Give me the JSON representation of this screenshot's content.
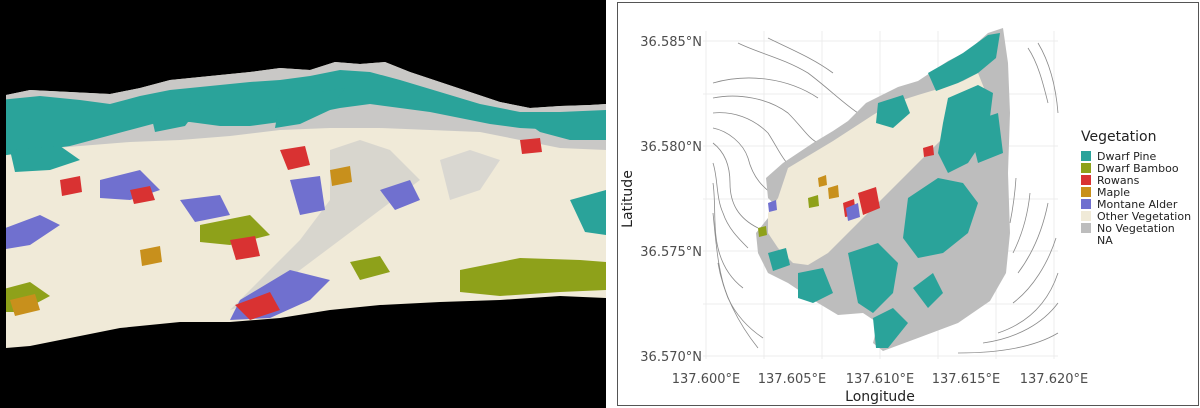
{
  "map": {
    "x_axis_title": "Longitude",
    "y_axis_title": "Latitude",
    "x_ticks": [
      "137.600°E",
      "137.605°E",
      "137.610°E",
      "137.615°E",
      "137.620°E"
    ],
    "y_ticks": [
      "36.585°N",
      "36.580°N",
      "36.575°N",
      "36.570°N"
    ],
    "legend": {
      "title": "Vegetation",
      "items": [
        {
          "label": "Dwarf Pine",
          "color": "#2aa39a"
        },
        {
          "label": "Dwarf Bamboo",
          "color": "#8ea11a"
        },
        {
          "label": "Rowans",
          "color": "#d93232"
        },
        {
          "label": "Maple",
          "color": "#c8901c"
        },
        {
          "label": "Montane Alder",
          "color": "#7070cf"
        },
        {
          "label": "Other Vegetation",
          "color": "#f0ead8"
        },
        {
          "label": "No Vegetation",
          "color": "#bdbdbd"
        },
        {
          "label": "NA",
          "color": "#ffffff"
        }
      ]
    }
  }
}
